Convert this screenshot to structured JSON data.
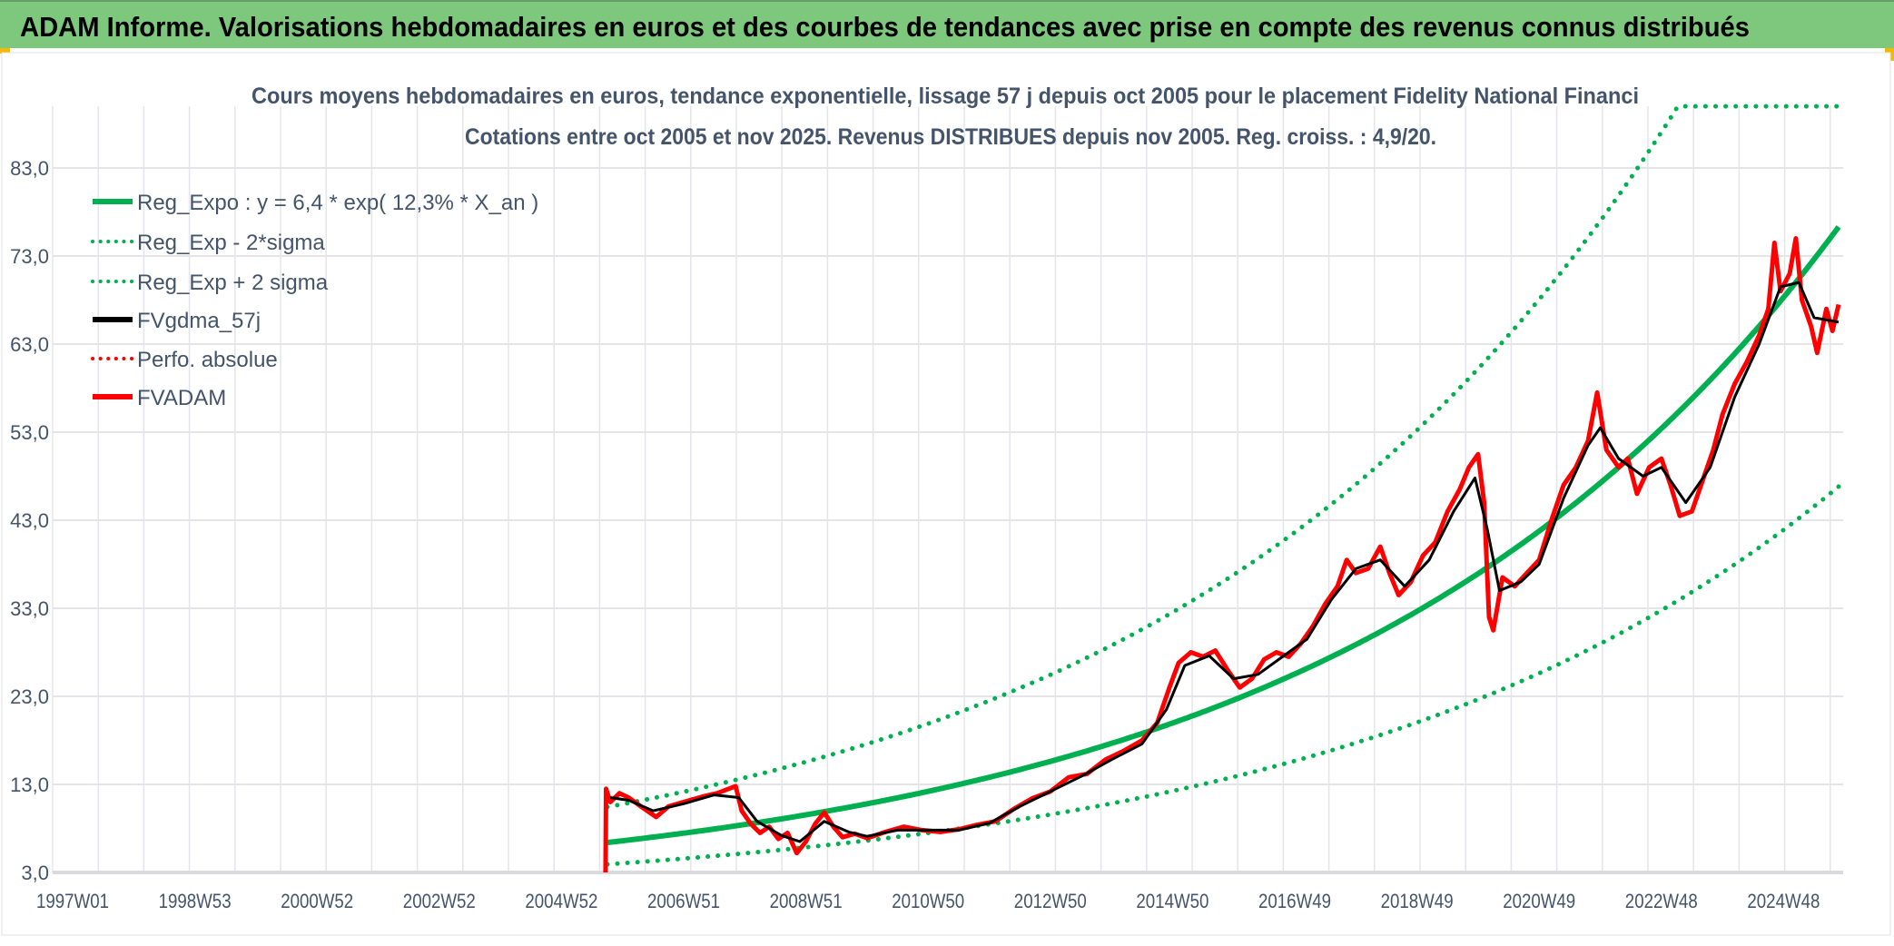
{
  "header": {
    "title": "ADAM Informe. Valorisations hebdomadaires en euros et des courbes de tendances avec prise en compte des revenus connus distribués"
  },
  "colors": {
    "header_bg": "#7DC87C",
    "trend": "#00B050",
    "price": "#FF0000",
    "smooth": "#000000",
    "perf": "#FF0000"
  },
  "chart_data": {
    "type": "line",
    "title": "Cours moyens hebdomadaires en euros, tendance exponentielle, lissage 57 j depuis oct 2005 pour le placement Fidelity National Financi",
    "subtitle": "Cotations entre oct 2005 et nov 2025. Revenus DISTRIBUES depuis nov 2005. Reg. croiss. : 4,9/20.",
    "grid": true,
    "legend_position": "top-left",
    "ylim": [
      3,
      90
    ],
    "yticks": [
      "3,0",
      "13,0",
      "23,0",
      "33,0",
      "43,0",
      "53,0",
      "63,0",
      "73,0",
      "83,0"
    ],
    "ytick_values": [
      3,
      13,
      23,
      33,
      43,
      53,
      63,
      73,
      83
    ],
    "xlim_years": [
      1997.0,
      2026.0
    ],
    "xticks": [
      "1997W01",
      "1998W53",
      "2000W52",
      "2002W52",
      "2004W52",
      "2006W51",
      "2008W51",
      "2010W50",
      "2012W50",
      "2014W50",
      "2016W49",
      "2018W49",
      "2020W49",
      "2022W48",
      "2024W48"
    ],
    "legend": [
      {
        "name": "Reg_Expo : y = 6,4 * exp( 12,3% *  X_an )",
        "color": "#00B050",
        "style": "solid"
      },
      {
        "name": "Reg_Exp - 2*sigma",
        "color": "#00B050",
        "style": "dotted"
      },
      {
        "name": "Reg_Exp + 2 sigma",
        "color": "#00B050",
        "style": "dotted"
      },
      {
        "name": "FVgdma_57j",
        "color": "#000000",
        "style": "solid"
      },
      {
        "name": "Perfo. absolue",
        "color": "#FF0000",
        "style": "dotted"
      },
      {
        "name": "FVADAM",
        "color": "#FF0000",
        "style": "solid"
      }
    ],
    "trend": {
      "a": 6.4,
      "rate": 0.123,
      "start_year": 2005.75,
      "end_year": 2025.9,
      "sigma_factor": 1.63,
      "upper_cap": 90
    },
    "series": [
      {
        "name": "FVADAM",
        "points": [
          [
            2005.72,
            3
          ],
          [
            2005.73,
            12.5
          ],
          [
            2005.8,
            11
          ],
          [
            2005.95,
            12
          ],
          [
            2006.1,
            11.5
          ],
          [
            2006.3,
            10.5
          ],
          [
            2006.55,
            9.3
          ],
          [
            2006.75,
            10.5
          ],
          [
            2007.0,
            11
          ],
          [
            2007.3,
            11.6
          ],
          [
            2007.55,
            12
          ],
          [
            2007.85,
            12.8
          ],
          [
            2007.95,
            10
          ],
          [
            2008.1,
            8.5
          ],
          [
            2008.25,
            7.5
          ],
          [
            2008.4,
            8.2
          ],
          [
            2008.55,
            6.8
          ],
          [
            2008.7,
            7.5
          ],
          [
            2008.85,
            5.2
          ],
          [
            2009.0,
            6.5
          ],
          [
            2009.15,
            8.5
          ],
          [
            2009.3,
            9.8
          ],
          [
            2009.45,
            8.2
          ],
          [
            2009.6,
            7
          ],
          [
            2009.8,
            7.4
          ],
          [
            2010.0,
            6.9
          ],
          [
            2010.3,
            7.6
          ],
          [
            2010.6,
            8.2
          ],
          [
            2010.9,
            7.8
          ],
          [
            2011.2,
            7.6
          ],
          [
            2011.5,
            7.9
          ],
          [
            2011.8,
            8.4
          ],
          [
            2012.1,
            8.8
          ],
          [
            2012.4,
            10.2
          ],
          [
            2012.7,
            11.4
          ],
          [
            2013.0,
            12.2
          ],
          [
            2013.3,
            13.8
          ],
          [
            2013.6,
            14.2
          ],
          [
            2013.9,
            15.8
          ],
          [
            2014.2,
            16.8
          ],
          [
            2014.5,
            18
          ],
          [
            2014.75,
            20
          ],
          [
            2014.95,
            24
          ],
          [
            2015.1,
            26.8
          ],
          [
            2015.3,
            28
          ],
          [
            2015.5,
            27.5
          ],
          [
            2015.7,
            28.2
          ],
          [
            2015.9,
            26
          ],
          [
            2016.1,
            24
          ],
          [
            2016.3,
            25
          ],
          [
            2016.5,
            27.2
          ],
          [
            2016.7,
            28
          ],
          [
            2016.9,
            27.5
          ],
          [
            2017.1,
            29
          ],
          [
            2017.3,
            31
          ],
          [
            2017.5,
            33.5
          ],
          [
            2017.7,
            35.5
          ],
          [
            2017.85,
            38.5
          ],
          [
            2018.0,
            37
          ],
          [
            2018.2,
            37.5
          ],
          [
            2018.4,
            40
          ],
          [
            2018.55,
            37
          ],
          [
            2018.7,
            34.5
          ],
          [
            2018.9,
            36
          ],
          [
            2019.1,
            39
          ],
          [
            2019.3,
            40.5
          ],
          [
            2019.5,
            44
          ],
          [
            2019.7,
            46.5
          ],
          [
            2019.85,
            49
          ],
          [
            2020.0,
            50.5
          ],
          [
            2020.1,
            45
          ],
          [
            2020.18,
            32
          ],
          [
            2020.25,
            30.5
          ],
          [
            2020.4,
            36.5
          ],
          [
            2020.6,
            35.5
          ],
          [
            2020.8,
            37
          ],
          [
            2021.0,
            38.5
          ],
          [
            2021.2,
            43
          ],
          [
            2021.4,
            47
          ],
          [
            2021.6,
            49
          ],
          [
            2021.8,
            52
          ],
          [
            2021.95,
            57.5
          ],
          [
            2022.1,
            51
          ],
          [
            2022.3,
            49
          ],
          [
            2022.45,
            50
          ],
          [
            2022.6,
            46
          ],
          [
            2022.8,
            49
          ],
          [
            2023.0,
            50
          ],
          [
            2023.15,
            47
          ],
          [
            2023.3,
            43.5
          ],
          [
            2023.5,
            44
          ],
          [
            2023.7,
            48
          ],
          [
            2023.85,
            51
          ],
          [
            2024.0,
            55
          ],
          [
            2024.2,
            58.5
          ],
          [
            2024.4,
            61
          ],
          [
            2024.6,
            64
          ],
          [
            2024.75,
            67
          ],
          [
            2024.85,
            74.5
          ],
          [
            2024.95,
            69
          ],
          [
            2025.1,
            71
          ],
          [
            2025.2,
            75
          ],
          [
            2025.3,
            68
          ],
          [
            2025.45,
            65
          ],
          [
            2025.55,
            62
          ],
          [
            2025.7,
            67
          ],
          [
            2025.8,
            64.5
          ],
          [
            2025.9,
            67.5
          ]
        ]
      },
      {
        "name": "FVgdma_57j",
        "points": [
          [
            2005.8,
            11.5
          ],
          [
            2006.1,
            11.2
          ],
          [
            2006.5,
            10
          ],
          [
            2007.0,
            10.8
          ],
          [
            2007.5,
            11.8
          ],
          [
            2007.9,
            11.5
          ],
          [
            2008.2,
            8.8
          ],
          [
            2008.6,
            7.2
          ],
          [
            2008.9,
            6.5
          ],
          [
            2009.3,
            8.8
          ],
          [
            2009.7,
            7.6
          ],
          [
            2010.0,
            7.1
          ],
          [
            2010.5,
            7.8
          ],
          [
            2011.0,
            7.8
          ],
          [
            2011.5,
            7.8
          ],
          [
            2012.0,
            8.6
          ],
          [
            2012.5,
            10.5
          ],
          [
            2013.0,
            12.2
          ],
          [
            2013.5,
            13.9
          ],
          [
            2014.0,
            15.8
          ],
          [
            2014.5,
            17.6
          ],
          [
            2014.9,
            21.5
          ],
          [
            2015.2,
            26.5
          ],
          [
            2015.6,
            27.6
          ],
          [
            2016.0,
            25
          ],
          [
            2016.4,
            25.5
          ],
          [
            2016.8,
            27.5
          ],
          [
            2017.2,
            29.5
          ],
          [
            2017.6,
            34
          ],
          [
            2018.0,
            37.5
          ],
          [
            2018.4,
            38.5
          ],
          [
            2018.8,
            35.5
          ],
          [
            2019.2,
            38.5
          ],
          [
            2019.6,
            44
          ],
          [
            2019.95,
            47.8
          ],
          [
            2020.15,
            42
          ],
          [
            2020.35,
            35
          ],
          [
            2020.7,
            36
          ],
          [
            2021.0,
            38
          ],
          [
            2021.4,
            45.5
          ],
          [
            2021.8,
            51.5
          ],
          [
            2022.0,
            53.5
          ],
          [
            2022.3,
            50
          ],
          [
            2022.7,
            48
          ],
          [
            2023.0,
            49
          ],
          [
            2023.4,
            45
          ],
          [
            2023.8,
            49
          ],
          [
            2024.2,
            57
          ],
          [
            2024.6,
            63
          ],
          [
            2024.95,
            69.5
          ],
          [
            2025.25,
            70
          ],
          [
            2025.5,
            66
          ],
          [
            2025.9,
            65.5
          ]
        ]
      }
    ]
  }
}
